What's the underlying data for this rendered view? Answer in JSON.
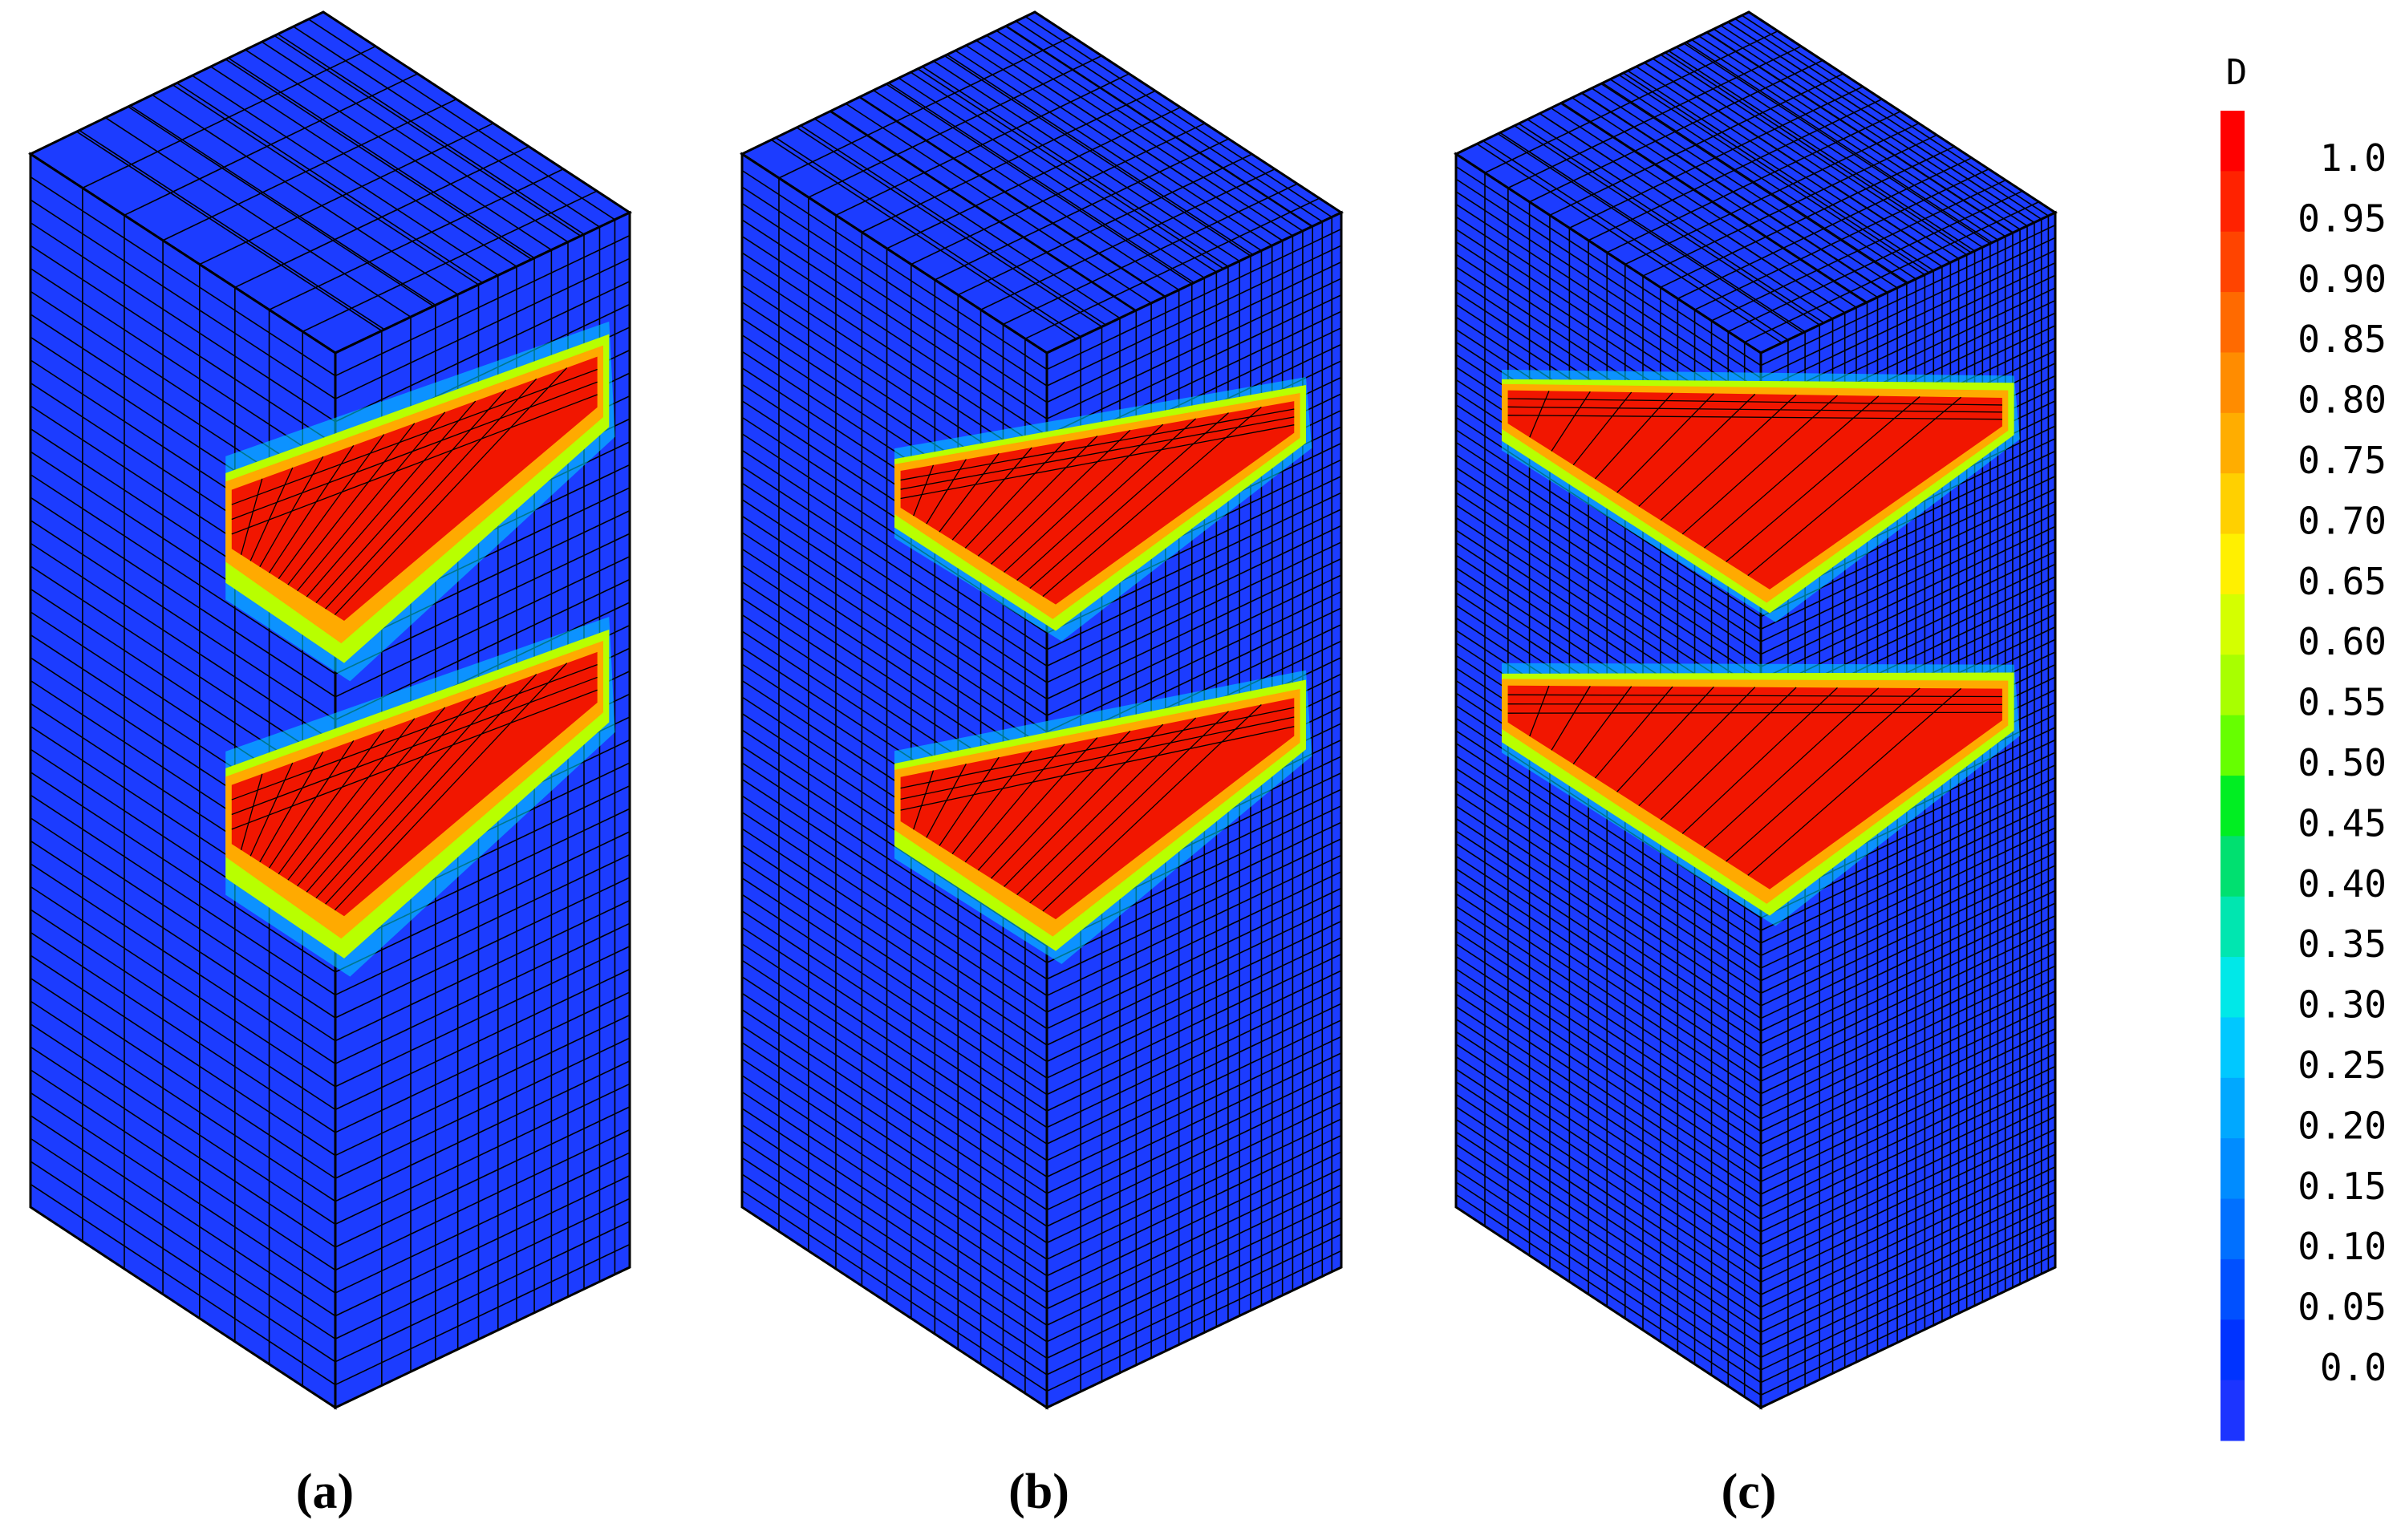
{
  "figure": {
    "panels": [
      {
        "label": "(a)",
        "mesh_density": "coarse"
      },
      {
        "label": "(b)",
        "mesh_density": "medium"
      },
      {
        "label": "(c)",
        "mesh_density": "fine"
      }
    ]
  },
  "legend": {
    "title": "D",
    "tick_labels": [
      "1.0",
      "0.95",
      "0.90",
      "0.85",
      "0.80",
      "0.75",
      "0.70",
      "0.65",
      "0.60",
      "0.55",
      "0.50",
      "0.45",
      "0.40",
      "0.35",
      "0.30",
      "0.25",
      "0.20",
      "0.15",
      "0.10",
      "0.05",
      "0.0"
    ],
    "band_colors": [
      "#ff0000",
      "#ff2200",
      "#ff4400",
      "#ff6a00",
      "#ff8c00",
      "#ffad00",
      "#ffd000",
      "#fff000",
      "#d4ff00",
      "#a8ff00",
      "#66ff00",
      "#00ee22",
      "#00e070",
      "#00e6b0",
      "#00e8e8",
      "#00c8ff",
      "#00a8ff",
      "#008cff",
      "#0070ff",
      "#0050ff",
      "#0033ff",
      "#1c34ff"
    ]
  },
  "colors": {
    "background_material": "#1c3cff",
    "damage_core": "#f11600",
    "mesh_line": "#000000"
  }
}
